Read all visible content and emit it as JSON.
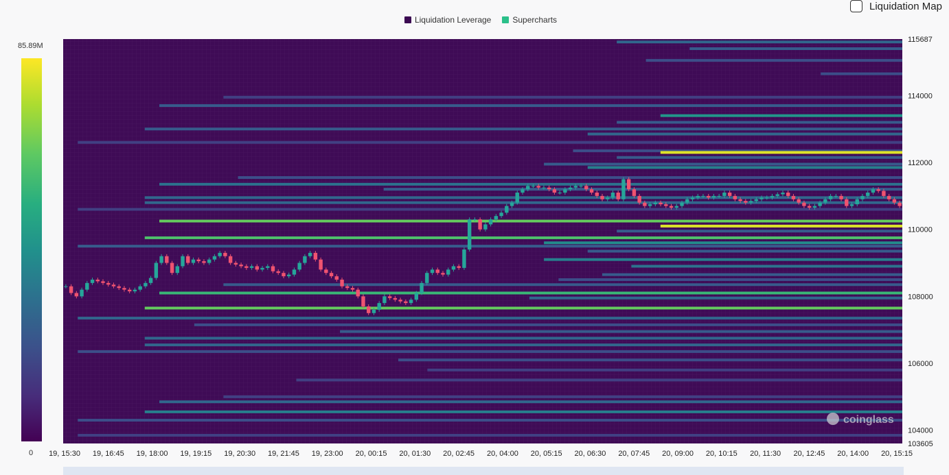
{
  "legend": {
    "items": [
      {
        "label": "Liquidation Leverage",
        "color": "#3b0a52"
      },
      {
        "label": "Supercharts",
        "color": "#2bc08a"
      }
    ]
  },
  "toggle": {
    "label": "Liquidation Map",
    "checked": false
  },
  "colorbar": {
    "max_label": "85.89M",
    "min_label": "0",
    "max_value": 85890000,
    "min_value": 0
  },
  "watermark": {
    "text": "coinglass"
  },
  "chart_data": {
    "type": "heatmap",
    "x_tick_labels": [
      "19, 15:30",
      "19, 16:45",
      "19, 18:00",
      "19, 19:15",
      "19, 20:30",
      "19, 21:45",
      "19, 23:00",
      "20, 00:15",
      "20, 01:30",
      "20, 02:45",
      "20, 04:00",
      "20, 05:15",
      "20, 06:30",
      "20, 07:45",
      "20, 09:00",
      "20, 10:15",
      "20, 11:30",
      "20, 12:45",
      "20, 14:00",
      "20, 15:15"
    ],
    "y_tick_labels": [
      "115687",
      "114000",
      "112000",
      "110000",
      "108000",
      "106000",
      "104000",
      "103605"
    ],
    "ylim": [
      103605,
      115687
    ],
    "x_steps": 288,
    "levels": [
      {
        "price": 115600,
        "start": 190,
        "intensity": 0.35
      },
      {
        "price": 115400,
        "start": 215,
        "intensity": 0.3
      },
      {
        "price": 115050,
        "start": 200,
        "intensity": 0.25
      },
      {
        "price": 114650,
        "start": 260,
        "intensity": 0.25
      },
      {
        "price": 113950,
        "start": 55,
        "intensity": 0.2
      },
      {
        "price": 113700,
        "start": 33,
        "intensity": 0.3
      },
      {
        "price": 113400,
        "start": 205,
        "intensity": 0.55
      },
      {
        "price": 113200,
        "start": 190,
        "intensity": 0.3
      },
      {
        "price": 113000,
        "start": 28,
        "intensity": 0.3
      },
      {
        "price": 112850,
        "start": 180,
        "intensity": 0.35
      },
      {
        "price": 112600,
        "start": 5,
        "intensity": 0.2
      },
      {
        "price": 112350,
        "start": 175,
        "intensity": 0.25
      },
      {
        "price": 112300,
        "start": 205,
        "intensity": 1.0
      },
      {
        "price": 112150,
        "start": 190,
        "intensity": 0.3
      },
      {
        "price": 111950,
        "start": 165,
        "intensity": 0.3
      },
      {
        "price": 111850,
        "start": 180,
        "intensity": 0.45
      },
      {
        "price": 111550,
        "start": 60,
        "intensity": 0.25
      },
      {
        "price": 111350,
        "start": 33,
        "intensity": 0.4
      },
      {
        "price": 111200,
        "start": 110,
        "intensity": 0.3
      },
      {
        "price": 110950,
        "start": 28,
        "intensity": 0.35
      },
      {
        "price": 110800,
        "start": 28,
        "intensity": 0.35
      },
      {
        "price": 110600,
        "start": 5,
        "intensity": 0.2
      },
      {
        "price": 110250,
        "start": 33,
        "intensity": 0.8
      },
      {
        "price": 110100,
        "start": 205,
        "intensity": 1.0
      },
      {
        "price": 109950,
        "start": 190,
        "intensity": 0.3
      },
      {
        "price": 109750,
        "start": 28,
        "intensity": 0.75
      },
      {
        "price": 109600,
        "start": 165,
        "intensity": 0.5
      },
      {
        "price": 109500,
        "start": 5,
        "intensity": 0.3
      },
      {
        "price": 109350,
        "start": 180,
        "intensity": 0.3
      },
      {
        "price": 109100,
        "start": 165,
        "intensity": 0.45
      },
      {
        "price": 108900,
        "start": 195,
        "intensity": 0.4
      },
      {
        "price": 108650,
        "start": 185,
        "intensity": 0.3
      },
      {
        "price": 108500,
        "start": 170,
        "intensity": 0.25
      },
      {
        "price": 108350,
        "start": 55,
        "intensity": 0.3
      },
      {
        "price": 108100,
        "start": 33,
        "intensity": 0.7
      },
      {
        "price": 107950,
        "start": 160,
        "intensity": 0.35
      },
      {
        "price": 107650,
        "start": 28,
        "intensity": 0.8
      },
      {
        "price": 107350,
        "start": 5,
        "intensity": 0.35
      },
      {
        "price": 107150,
        "start": 45,
        "intensity": 0.25
      },
      {
        "price": 106950,
        "start": 95,
        "intensity": 0.3
      },
      {
        "price": 106750,
        "start": 28,
        "intensity": 0.35
      },
      {
        "price": 106550,
        "start": 28,
        "intensity": 0.35
      },
      {
        "price": 106350,
        "start": 5,
        "intensity": 0.25
      },
      {
        "price": 106100,
        "start": 115,
        "intensity": 0.25
      },
      {
        "price": 105800,
        "start": 125,
        "intensity": 0.2
      },
      {
        "price": 105500,
        "start": 80,
        "intensity": 0.2
      },
      {
        "price": 105000,
        "start": 55,
        "intensity": 0.2
      },
      {
        "price": 104850,
        "start": 33,
        "intensity": 0.35
      },
      {
        "price": 104550,
        "start": 28,
        "intensity": 0.45
      },
      {
        "price": 104300,
        "start": 5,
        "intensity": 0.25
      },
      {
        "price": 103850,
        "start": 5,
        "intensity": 0.2
      }
    ],
    "candles_close": [
      108300,
      108100,
      108000,
      108200,
      108400,
      108500,
      108450,
      108400,
      108350,
      108300,
      108250,
      108200,
      108150,
      108200,
      108300,
      108400,
      108550,
      109000,
      109200,
      109000,
      108700,
      108900,
      109200,
      109000,
      109100,
      109050,
      109000,
      109100,
      109200,
      109300,
      109200,
      109000,
      108950,
      108900,
      108850,
      108900,
      108800,
      108850,
      108900,
      108750,
      108700,
      108600,
      108650,
      108800,
      109000,
      109200,
      109300,
      109100,
      108800,
      108700,
      108600,
      108500,
      108300,
      108250,
      108200,
      108000,
      107700,
      107500,
      107600,
      107800,
      108000,
      107950,
      107900,
      107850,
      107800,
      107900,
      108100,
      108400,
      108700,
      108800,
      108700,
      108650,
      108800,
      108900,
      108850,
      109400,
      110300,
      110300,
      110000,
      110150,
      110300,
      110400,
      110500,
      110700,
      110800,
      111100,
      111200,
      111300,
      111300,
      111250,
      111250,
      111200,
      111100,
      111100,
      111200,
      111250,
      111300,
      111300,
      111200,
      111100,
      111000,
      110900,
      110950,
      111100,
      110900,
      111500,
      111200,
      111000,
      110800,
      110700,
      110750,
      110800,
      110750,
      110700,
      110650,
      110700,
      110800,
      110900,
      110950,
      111000,
      111000,
      110950,
      111000,
      111000,
      111100,
      111000,
      110900,
      110850,
      110800,
      110850,
      110900,
      110950,
      110950,
      111000,
      111050,
      111100,
      111000,
      110900,
      110800,
      110700,
      110650,
      110700,
      110800,
      110900,
      111000,
      111000,
      110900,
      110700,
      110750,
      110900,
      111000,
      111100,
      111200,
      111150,
      111000,
      110900,
      110800,
      110700
    ]
  }
}
